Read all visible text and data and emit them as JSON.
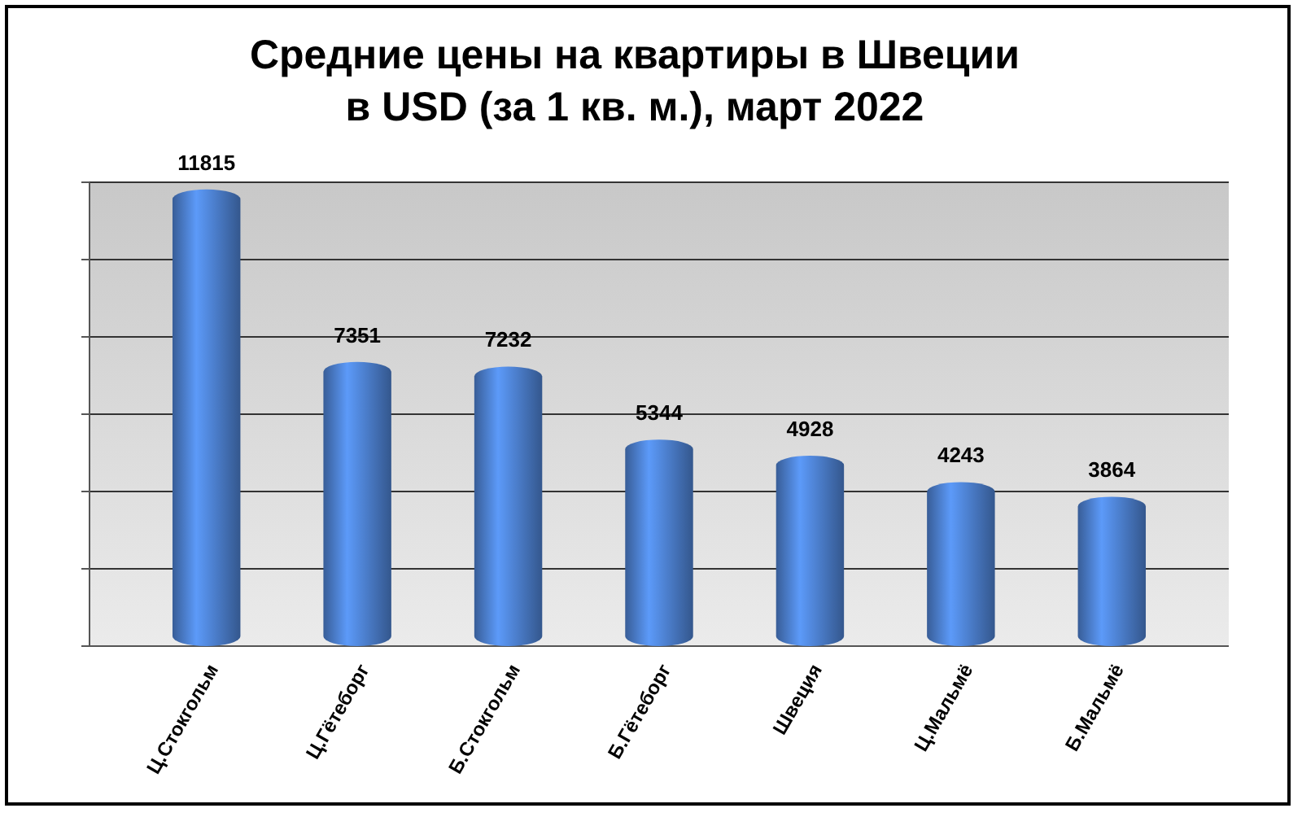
{
  "chart_data": {
    "type": "bar",
    "title": "Средние цены на квартиры в Швеции\nв USD (за 1 кв. м.), март 2022",
    "categories": [
      "Ц.Стокгольм",
      "Ц.Гётеборг",
      "Б.Стокгольм",
      "Б.Гётеборг",
      "Швеция",
      "Ц.Мальмё",
      "Б.Мальмё"
    ],
    "values": [
      11815,
      7351,
      7232,
      5344,
      4928,
      4243,
      3864
    ],
    "color": "#4a7cc9",
    "ylim": [
      0,
      12000
    ],
    "yticks": [
      {
        "value": 0,
        "label": null
      },
      {
        "value": 2000,
        "label": null
      },
      {
        "value": 4000,
        "label": null
      },
      {
        "value": 6000,
        "label": null
      },
      {
        "value": 8000,
        "label": null
      },
      {
        "value": 10000,
        "label": null
      },
      {
        "value": 12000,
        "label": null
      }
    ],
    "grid": "y",
    "tick_labels": "x",
    "data_labels": true
  }
}
